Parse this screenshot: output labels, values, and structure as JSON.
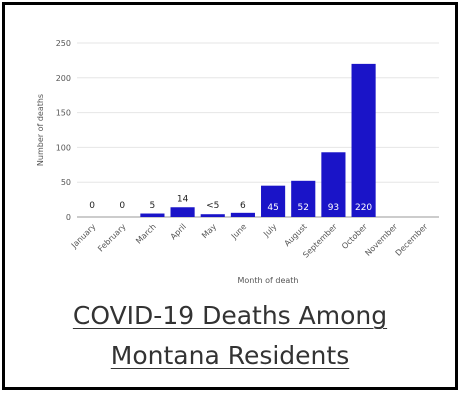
{
  "chart_data": {
    "type": "bar",
    "categories": [
      "January",
      "February",
      "March",
      "April",
      "May",
      "June",
      "July",
      "August",
      "September",
      "October",
      "November",
      "December"
    ],
    "values": [
      0,
      0,
      5,
      14,
      4,
      6,
      45,
      52,
      93,
      220,
      null,
      null
    ],
    "data_labels": [
      "0",
      "0",
      "5",
      "14",
      "<5",
      "6",
      "45",
      "52",
      "93",
      "220",
      "",
      ""
    ],
    "ylabel": "Number of deaths",
    "xlabel": "Month of death",
    "ylim": [
      0,
      250
    ],
    "yticks": [
      0,
      50,
      100,
      150,
      200,
      250
    ],
    "grid": true,
    "bar_color": "#1a14c8"
  },
  "caption": {
    "line1": "COVID-19 Deaths Among",
    "line2": "Montana Residents"
  }
}
